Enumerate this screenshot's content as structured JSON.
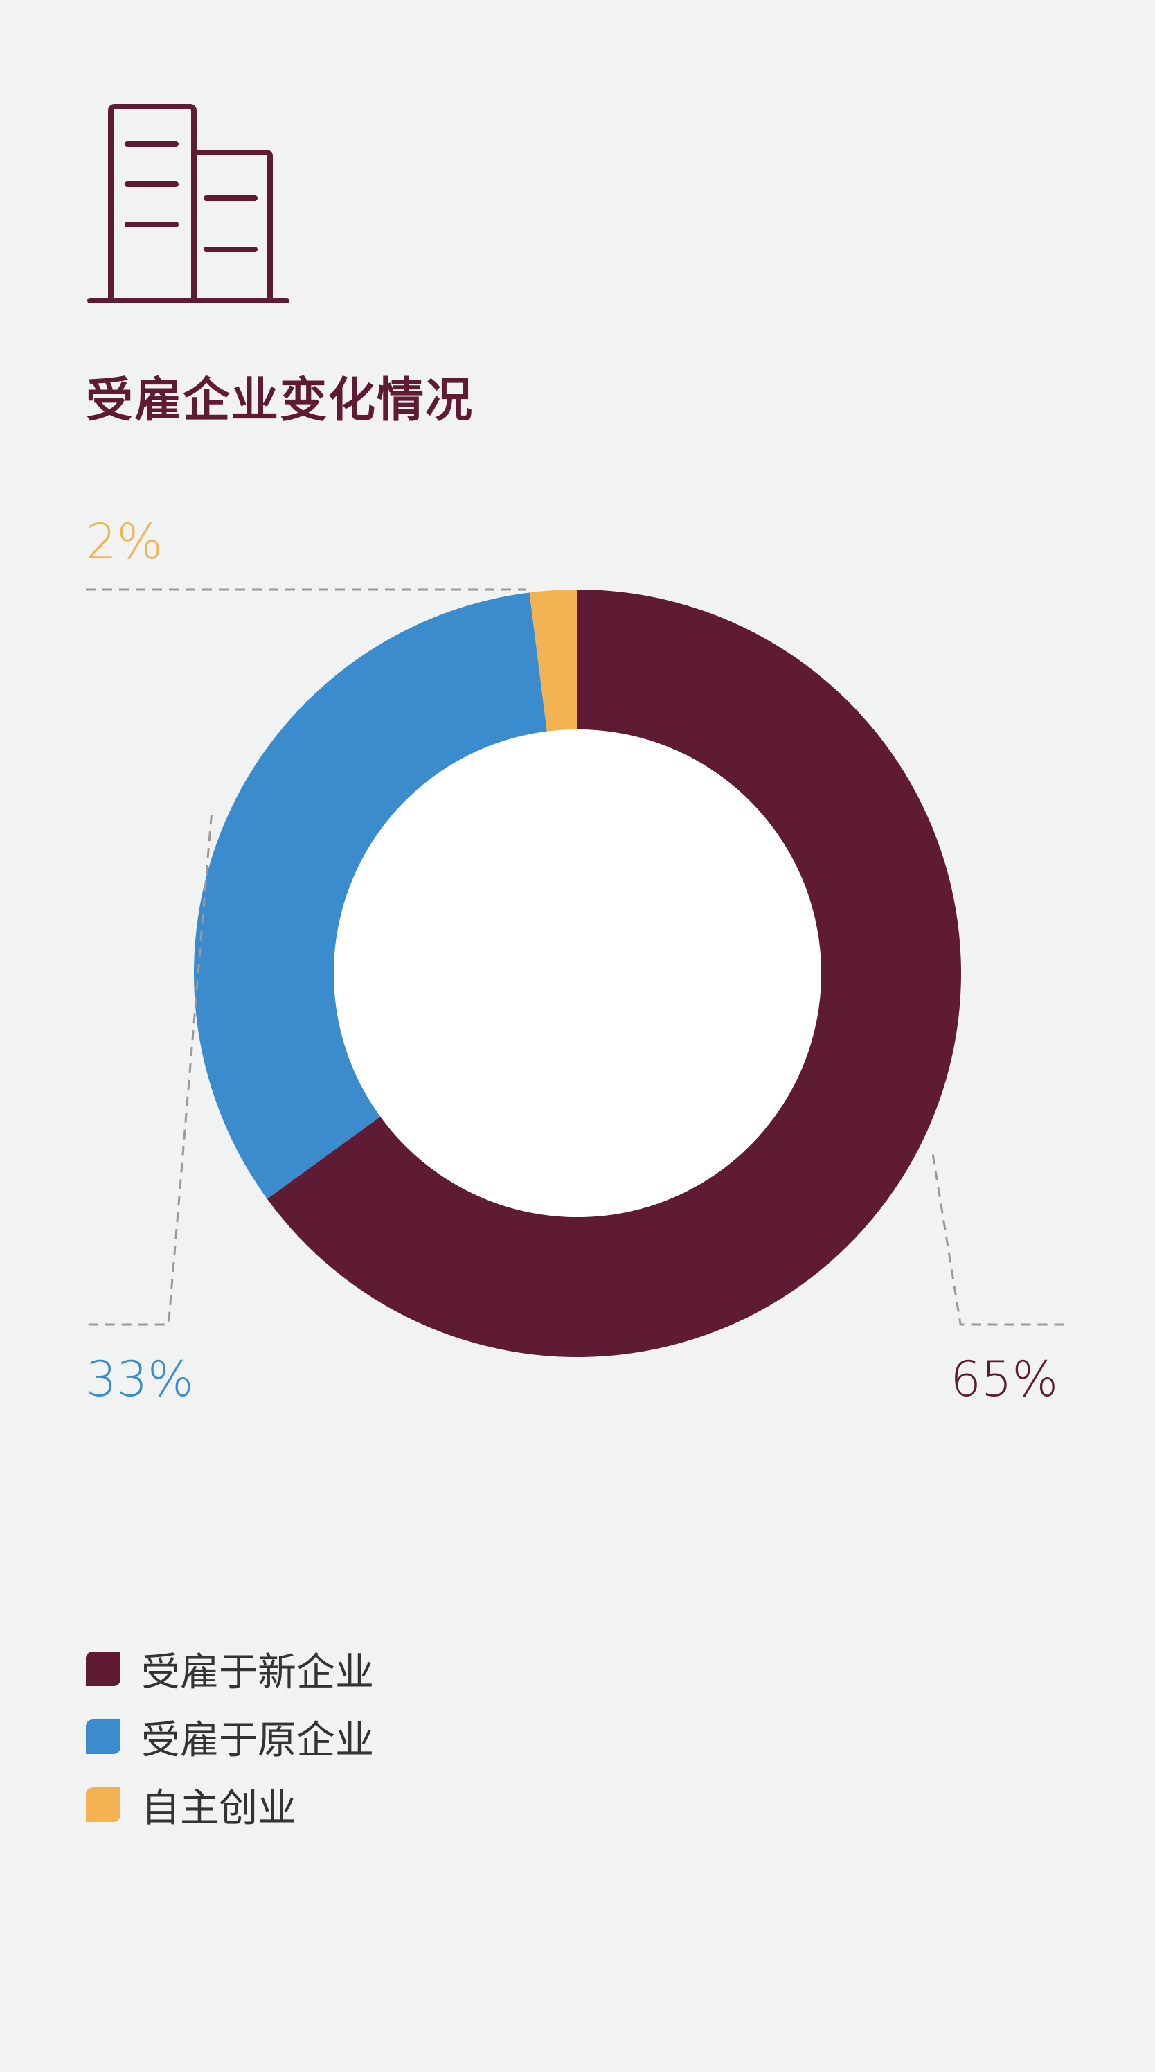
{
  "header": {
    "icon": "building-icon",
    "title": "受雇企业变化情况"
  },
  "chart_data": {
    "type": "pie",
    "variant": "donut",
    "title": "受雇企业变化情况",
    "categories": [
      "受雇于新企业",
      "受雇于原企业",
      "自主创业"
    ],
    "values": [
      65,
      33,
      2
    ],
    "labels": [
      "65%",
      "33%",
      "2%"
    ],
    "colors": [
      "#5e1b33",
      "#3a8ccc",
      "#f4b352"
    ],
    "legend_position": "bottom-left"
  }
}
